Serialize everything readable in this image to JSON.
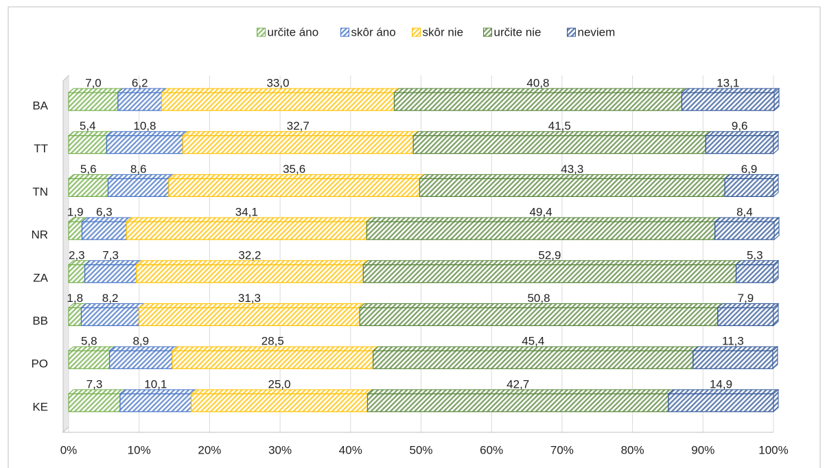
{
  "chart_data": {
    "type": "stacked-bar-horizontal",
    "categories": [
      "BA",
      "TT",
      "TN",
      "NR",
      "ZA",
      "BB",
      "PO",
      "KE"
    ],
    "series": [
      {
        "name": "určite áno",
        "color": "#70ad47",
        "values": [
          7.0,
          5.4,
          5.6,
          1.9,
          2.3,
          1.8,
          5.8,
          7.3
        ],
        "value_labels": [
          "7,0",
          "5,4",
          "5,6",
          "1,9",
          "2,3",
          "1,8",
          "5,8",
          "7,3"
        ]
      },
      {
        "name": "skôr áno",
        "color": "#4472c4",
        "values": [
          6.2,
          10.8,
          8.6,
          6.3,
          7.3,
          8.2,
          8.9,
          10.1
        ],
        "value_labels": [
          "6,2",
          "10,8",
          "8,6",
          "6,3",
          "7,3",
          "8,2",
          "8,9",
          "10,1"
        ]
      },
      {
        "name": "skôr nie",
        "color": "#ffc000",
        "values": [
          33.0,
          32.7,
          35.6,
          34.1,
          32.2,
          31.3,
          28.5,
          25.0
        ],
        "value_labels": [
          "33,0",
          "32,7",
          "35,6",
          "34,1",
          "32,2",
          "31,3",
          "28,5",
          "25,0"
        ]
      },
      {
        "name": "určite nie",
        "color": "#548235",
        "values": [
          40.8,
          41.5,
          43.3,
          49.4,
          52.9,
          50.8,
          45.4,
          42.7
        ],
        "value_labels": [
          "40,8",
          "41,5",
          "43,3",
          "49,4",
          "52,9",
          "50,8",
          "45,4",
          "42,7"
        ]
      },
      {
        "name": "neviem",
        "color": "#2f5597",
        "values": [
          13.1,
          9.6,
          6.9,
          8.4,
          5.3,
          7.9,
          11.3,
          14.9
        ],
        "value_labels": [
          "13,1",
          "9,6",
          "6,9",
          "8,4",
          "5,3",
          "7,9",
          "11,3",
          "14,9"
        ]
      }
    ],
    "xlim": [
      0,
      100
    ],
    "xticks": [
      {
        "value": 0,
        "label": "0%"
      },
      {
        "value": 10,
        "label": "10%"
      },
      {
        "value": 20,
        "label": "20%"
      },
      {
        "value": 30,
        "label": "30%"
      },
      {
        "value": 40,
        "label": "40%"
      },
      {
        "value": 50,
        "label": "50%"
      },
      {
        "value": 60,
        "label": "60%"
      },
      {
        "value": 70,
        "label": "70%"
      },
      {
        "value": 80,
        "label": "80%"
      },
      {
        "value": 90,
        "label": "90%"
      },
      {
        "value": 100,
        "label": "100%"
      }
    ],
    "grid": true,
    "legend": "top"
  }
}
